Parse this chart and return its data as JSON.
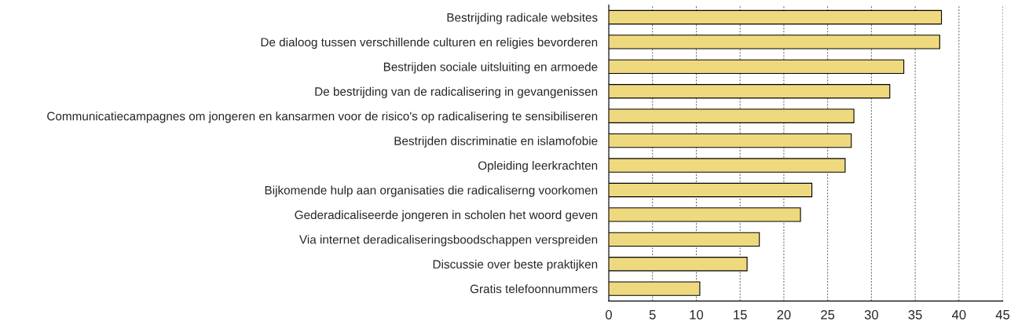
{
  "chart_data": {
    "type": "bar",
    "orientation": "horizontal",
    "categories": [
      "Bestrijding radicale websites",
      "De dialoog tussen verschillende culturen en religies bevorderen",
      "Bestrijden sociale uitsluiting en armoede",
      "De bestrijding van de radicalisering in gevangenissen",
      "Communicatiecampagnes om jongeren en kansarmen voor de risico's op radicalisering te sensibiliseren",
      "Bestrijden discriminatie en islamofobie",
      "Opleiding leerkrachten",
      "Bijkomende hulp aan organisaties die radicaliserng voorkomen",
      "Gederadicaliseerde jongeren in scholen het woord geven",
      "Via internet deradicaliseringsboodschappen verspreiden",
      "Discussie over beste praktijken",
      "Gratis telefoonnummers"
    ],
    "values": [
      38.0,
      37.8,
      33.7,
      32.1,
      28.0,
      27.7,
      27.0,
      23.2,
      21.9,
      17.2,
      15.8,
      10.4
    ],
    "color": "#eed97f",
    "xlim": [
      0,
      45
    ],
    "xticks": [
      0,
      5,
      10,
      15,
      20,
      25,
      30,
      35,
      40,
      45
    ],
    "grid": "x"
  }
}
